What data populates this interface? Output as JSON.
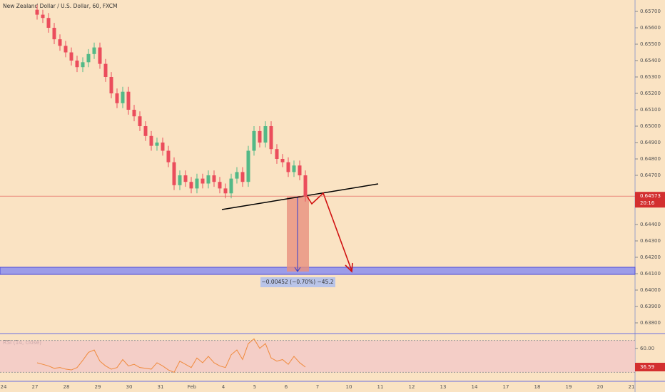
{
  "chart_data": {
    "type": "candlestick",
    "title": "New Zealand Dollar / U.S. Dollar, 60, FXCM",
    "open": [
      0.6571,
      0.6568,
      0.6566,
      0.656,
      0.6553,
      0.6549,
      0.6545,
      0.654,
      0.6536,
      0.6539,
      0.6544,
      0.6548,
      0.6538,
      0.653,
      0.652,
      0.6514,
      0.6521,
      0.651,
      0.6506,
      0.65,
      0.6494,
      0.6488,
      0.649,
      0.6485,
      0.6478,
      0.6464,
      0.647,
      0.6466,
      0.6462,
      0.6468,
      0.6465,
      0.647,
      0.6466,
      0.6462,
      0.6459,
      0.6468,
      0.6472,
      0.6466,
      0.6485,
      0.6497,
      0.649,
      0.65,
      0.6486,
      0.648,
      0.6478,
      0.6472,
      0.6476,
      0.647
    ],
    "high": [
      0.6574,
      0.6571,
      0.6569,
      0.6563,
      0.6556,
      0.6552,
      0.6548,
      0.6543,
      0.6542,
      0.6547,
      0.6551,
      0.6551,
      0.6541,
      0.6533,
      0.6523,
      0.6524,
      0.6524,
      0.6513,
      0.6509,
      0.6503,
      0.6497,
      0.6493,
      0.6493,
      0.6488,
      0.6481,
      0.6473,
      0.6473,
      0.6469,
      0.6471,
      0.6471,
      0.6473,
      0.6473,
      0.6469,
      0.6465,
      0.6471,
      0.6475,
      0.6475,
      0.6488,
      0.65,
      0.65,
      0.6503,
      0.6503,
      0.6489,
      0.6483,
      0.6481,
      0.6479,
      0.6479,
      0.6473
    ],
    "low": [
      0.6565,
      0.6563,
      0.6557,
      0.655,
      0.6546,
      0.6542,
      0.6537,
      0.6533,
      0.6533,
      0.6536,
      0.6541,
      0.6535,
      0.6527,
      0.6517,
      0.6511,
      0.6511,
      0.6507,
      0.6503,
      0.6497,
      0.6491,
      0.6485,
      0.6485,
      0.6482,
      0.6475,
      0.6461,
      0.6461,
      0.6463,
      0.6459,
      0.6459,
      0.6462,
      0.6462,
      0.6463,
      0.6459,
      0.6456,
      0.6456,
      0.6465,
      0.6463,
      0.6463,
      0.6482,
      0.6487,
      0.6487,
      0.6483,
      0.6477,
      0.6475,
      0.6469,
      0.6469,
      0.6467,
      0.6454
    ],
    "close": [
      0.6568,
      0.6566,
      0.656,
      0.6553,
      0.6549,
      0.6545,
      0.654,
      0.6536,
      0.6539,
      0.6544,
      0.6548,
      0.6538,
      0.653,
      0.652,
      0.6514,
      0.6521,
      0.651,
      0.6506,
      0.65,
      0.6494,
      0.6488,
      0.649,
      0.6485,
      0.6478,
      0.6464,
      0.647,
      0.6466,
      0.6462,
      0.6468,
      0.6465,
      0.647,
      0.6466,
      0.6462,
      0.6459,
      0.6468,
      0.6472,
      0.6466,
      0.6485,
      0.6497,
      0.649,
      0.65,
      0.6486,
      0.648,
      0.6478,
      0.6472,
      0.6476,
      0.647,
      0.6457
    ],
    "up_color": "#53b987",
    "down_color": "#eb4d5c",
    "categories": [
      "24",
      "27",
      "28",
      "29",
      "30",
      "31",
      "Feb",
      "4",
      "5",
      "6",
      "7",
      "10",
      "11",
      "12",
      "13",
      "14",
      "17",
      "18",
      "19",
      "20",
      "21"
    ],
    "ylim": [
      0.6377,
      0.6577
    ],
    "yticks": [
      {
        "value": 0.657,
        "label": "0.65700"
      },
      {
        "value": 0.656,
        "label": "0.65600"
      },
      {
        "value": 0.655,
        "label": "0.65500"
      },
      {
        "value": 0.654,
        "label": "0.65400"
      },
      {
        "value": 0.653,
        "label": "0.65300"
      },
      {
        "value": 0.652,
        "label": "0.65200"
      },
      {
        "value": 0.651,
        "label": "0.65100"
      },
      {
        "value": 0.65,
        "label": "0.65000"
      },
      {
        "value": 0.649,
        "label": "0.64900"
      },
      {
        "value": 0.648,
        "label": "0.64800"
      },
      {
        "value": 0.647,
        "label": "0.64700"
      },
      {
        "value": 0.644,
        "label": "0.64400"
      },
      {
        "value": 0.643,
        "label": "0.64300"
      },
      {
        "value": 0.642,
        "label": "0.64200"
      },
      {
        "value": 0.641,
        "label": "0.64100"
      },
      {
        "value": 0.64,
        "label": "0.64000"
      },
      {
        "value": 0.639,
        "label": "0.63900"
      },
      {
        "value": 0.638,
        "label": "0.63800"
      }
    ],
    "last_price": 0.64573,
    "countdown": "20:16",
    "measure_label": "−0.00452 (−0.70%) −45.2",
    "rsi": {
      "name": "RSI (14, close)",
      "color": "#f08a3c",
      "values": [
        42,
        40,
        38,
        35,
        36,
        34,
        33,
        36,
        45,
        55,
        58,
        44,
        38,
        34,
        36,
        46,
        38,
        40,
        36,
        35,
        34,
        42,
        38,
        33,
        30,
        44,
        40,
        36,
        48,
        42,
        50,
        42,
        38,
        36,
        52,
        58,
        46,
        66,
        72,
        60,
        66,
        48,
        44,
        46,
        40,
        50,
        42,
        36.59
      ],
      "ylim": [
        25,
        75
      ],
      "band": [
        30,
        70
      ],
      "yticks": [
        {
          "value": 60,
          "label": "60.00"
        }
      ]
    }
  }
}
